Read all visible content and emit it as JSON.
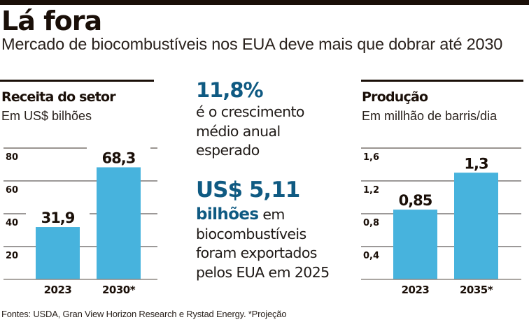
{
  "header": {
    "title": "Lá fora",
    "subtitle": "Mercado de biocombustíveis nos EUA deve mais que dobrar até 2030"
  },
  "colors": {
    "bar": "#47b3dd",
    "highlight": "#0f5a82",
    "text": "#1a0f08",
    "grid": "#3a3330"
  },
  "middle": {
    "stat1_value": "11,8%",
    "stat1_lines": [
      "é o crescimento",
      "médio anual",
      "esperado"
    ],
    "stat2_value": "US$ 5,11",
    "stat2_unit": "bilhões",
    "stat2_unit_suffix": " em",
    "stat2_lines": [
      "biocombustíveis",
      "foram exportados",
      "pelos EUA em 2025"
    ]
  },
  "footer": {
    "text": "Fontes: USDA, Gran View Horizon Research e Rystad Energy. *Projeção"
  },
  "chart_data": [
    {
      "type": "bar",
      "title": "Receita do setor",
      "subtitle": "Em US$ bilhões",
      "categories": [
        "2023",
        "2030*"
      ],
      "values": [
        31.9,
        68.3
      ],
      "value_labels": [
        "31,9",
        "68,3"
      ],
      "ylim": [
        0,
        80
      ],
      "yticks": [
        20,
        40,
        60,
        80
      ],
      "ytick_labels": [
        "20",
        "40",
        "60",
        "80"
      ],
      "grid": true,
      "xlabel": "",
      "ylabel": ""
    },
    {
      "type": "bar",
      "title": "Produção",
      "subtitle": "Em millhão de barris/dia",
      "categories": [
        "2023",
        "2035*"
      ],
      "values": [
        0.85,
        1.3
      ],
      "value_labels": [
        "0,85",
        "1,3"
      ],
      "ylim": [
        0,
        1.6
      ],
      "yticks": [
        0.4,
        0.8,
        1.2,
        1.6
      ],
      "ytick_labels": [
        "0,4",
        "0,8",
        "1,2",
        "1,6"
      ],
      "grid": true,
      "xlabel": "",
      "ylabel": ""
    }
  ]
}
